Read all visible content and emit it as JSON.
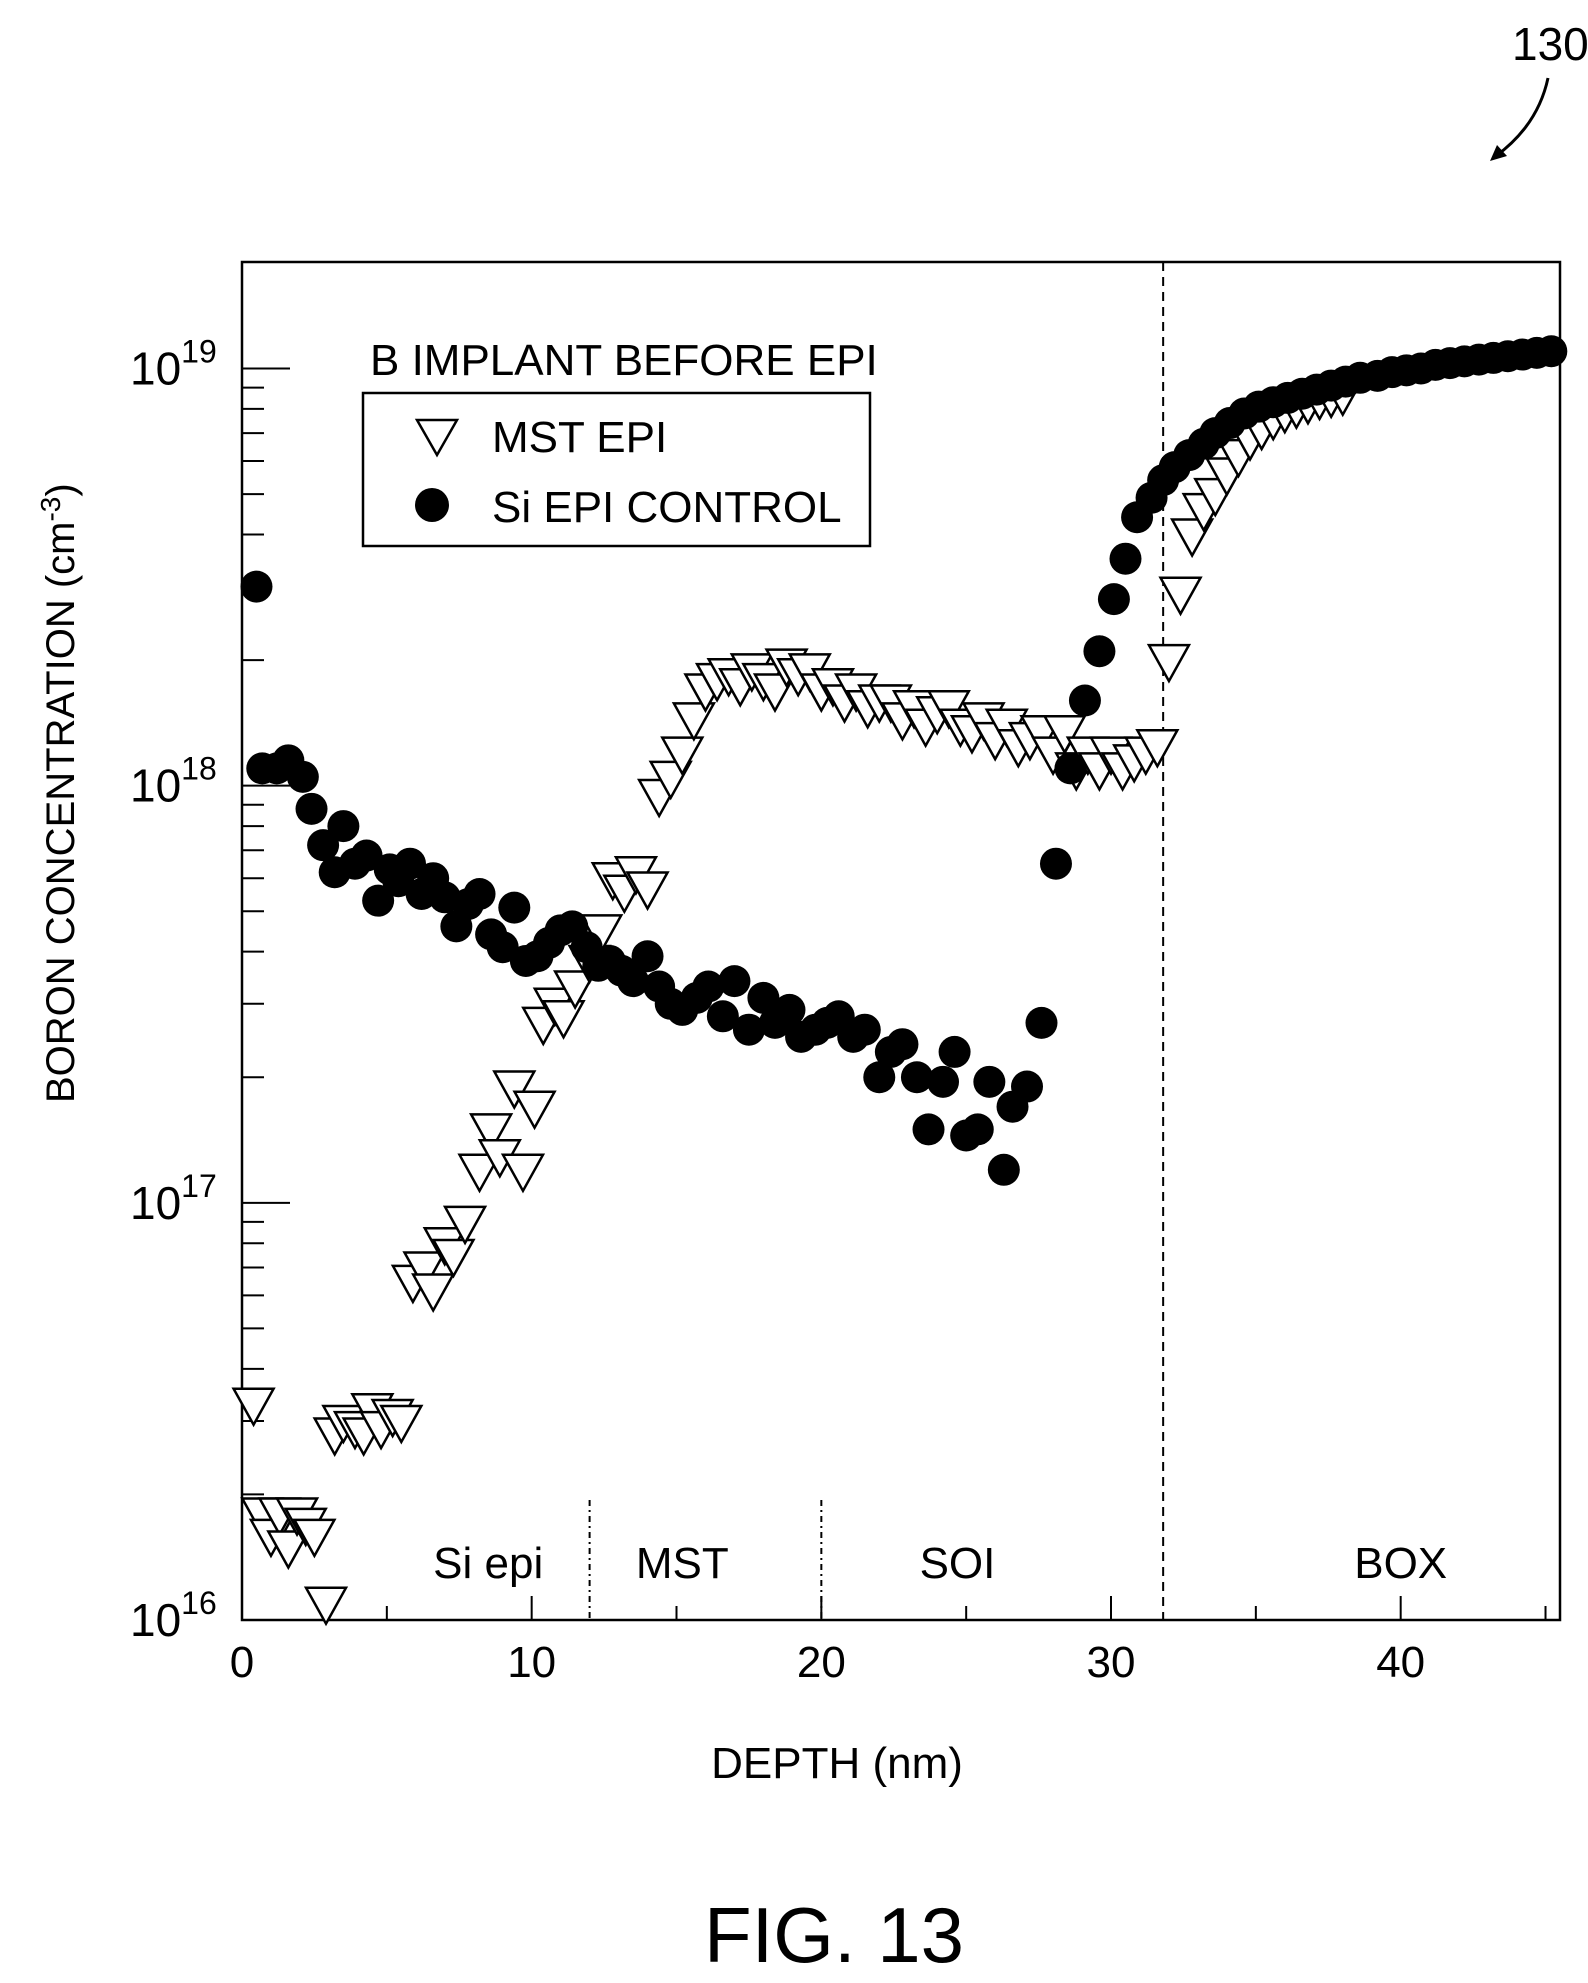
{
  "figure": {
    "ref_numeral": "130",
    "caption": "FIG. 13"
  },
  "chart_data": {
    "type": "scatter",
    "title": "",
    "xlabel": "DEPTH (nm)",
    "ylabel_main": "BORON CONCENTRATION (cm",
    "ylabel_sup": "-3",
    "ylabel_close": ")",
    "y_scale": "log",
    "xlim": [
      0,
      45.5
    ],
    "ylim": [
      1e+16,
      1.8e+19
    ],
    "x_ticks": [
      0,
      10,
      20,
      30,
      40
    ],
    "x_tick_labels": [
      "0",
      "10",
      "20",
      "30",
      "40"
    ],
    "y_ticks": [
      {
        "value": 1e+16,
        "base": "10",
        "exp": "16"
      },
      {
        "value": 1e+17,
        "base": "10",
        "exp": "17"
      },
      {
        "value": 1e+18,
        "base": "10",
        "exp": "18"
      },
      {
        "value": 1e+19,
        "base": "10",
        "exp": "19"
      }
    ],
    "legend_title": "B IMPLANT BEFORE EPI",
    "legend_placement": "top-left",
    "region_boundaries": [
      {
        "x": 12,
        "style": "dash-dot-short"
      },
      {
        "x": 20,
        "style": "dash-dot-short"
      },
      {
        "x": 31.8,
        "style": "dashed-full"
      }
    ],
    "region_labels": [
      {
        "text": "Si epi",
        "x": 8.5
      },
      {
        "text": "MST",
        "x": 15.2
      },
      {
        "text": "SOI",
        "x": 24.7
      },
      {
        "text": "BOX",
        "x": 40
      }
    ],
    "series": [
      {
        "name": "MST EPI",
        "marker": "open-down-triangle",
        "x": [
          0.4,
          0.7,
          1.0,
          1.3,
          1.6,
          1.9,
          2.2,
          2.5,
          2.9,
          3.2,
          3.5,
          3.9,
          4.2,
          4.5,
          4.8,
          5.2,
          5.5,
          5.9,
          6.3,
          6.6,
          7.0,
          7.3,
          7.7,
          8.2,
          8.6,
          8.9,
          9.4,
          9.7,
          10.1,
          10.4,
          10.8,
          11.1,
          11.5,
          12.0,
          12.4,
          12.8,
          13.2,
          13.6,
          14.0,
          14.4,
          14.8,
          15.2,
          15.6,
          16.0,
          16.4,
          16.8,
          17.2,
          17.6,
          18.0,
          18.4,
          18.8,
          19.2,
          19.6,
          20.0,
          20.4,
          20.8,
          21.2,
          21.6,
          22.0,
          22.4,
          22.8,
          23.2,
          23.6,
          24.0,
          24.4,
          24.8,
          25.2,
          25.6,
          26.0,
          26.4,
          26.8,
          27.2,
          27.6,
          28.0,
          28.4,
          28.8,
          29.2,
          29.6,
          30.0,
          30.4,
          30.8,
          31.2,
          31.6,
          32.0,
          32.4,
          32.8,
          33.2,
          33.6,
          34.0,
          34.4,
          34.8,
          35.2,
          35.6,
          36.0,
          36.4,
          36.8,
          37.2,
          37.6,
          38.0
        ],
        "values": [
          3.3e+16,
          1.8e+16,
          1.6e+16,
          1.8e+16,
          1.5e+16,
          1.8e+16,
          1.7e+16,
          1.6e+16,
          1.1e+16,
          2.8e+16,
          3e+16,
          2.9e+16,
          2.8e+16,
          3.2e+16,
          2.9e+16,
          3.1e+16,
          3e+16,
          6.5e+16,
          7e+16,
          6.2e+16,
          8e+16,
          7.5e+16,
          9e+16,
          1.2e+17,
          1.5e+17,
          1.3e+17,
          1.9e+17,
          1.2e+17,
          1.7e+17,
          2.7e+17,
          3e+17,
          2.8e+17,
          3.3e+17,
          3.8e+17,
          4.5e+17,
          6e+17,
          5.6e+17,
          6.2e+17,
          5.7e+17,
          9.5e+17,
          1.05e+18,
          1.2e+18,
          1.45e+18,
          1.7e+18,
          1.8e+18,
          1.85e+18,
          1.75e+18,
          1.9e+18,
          1.8e+18,
          1.7e+18,
          1.95e+18,
          1.85e+18,
          1.9e+18,
          1.7e+18,
          1.75e+18,
          1.6e+18,
          1.7e+18,
          1.55e+18,
          1.6e+18,
          1.6e+18,
          1.45e+18,
          1.55e+18,
          1.4e+18,
          1.5e+18,
          1.55e+18,
          1.4e+18,
          1.35e+18,
          1.45e+18,
          1.3e+18,
          1.4e+18,
          1.25e+18,
          1.3e+18,
          1.35e+18,
          1.2e+18,
          1.35e+18,
          1.1e+18,
          1.2e+18,
          1.1e+18,
          1.2e+18,
          1.1e+18,
          1.15e+18,
          1.2e+18,
          1.25e+18,
          2e+18,
          2.9e+18,
          4e+18,
          4.6e+18,
          5e+18,
          5.6e+18,
          6.2e+18,
          6.8e+18,
          7.2e+18,
          7.6e+18,
          7.9e+18,
          8.1e+18,
          8.3e+18,
          8.5e+18,
          8.6e+18,
          8.7e+18
        ]
      },
      {
        "name": "Si EPI CONTROL",
        "marker": "filled-circle",
        "x": [
          0.5,
          0.7,
          1.2,
          1.6,
          2.1,
          2.4,
          2.8,
          3.2,
          3.5,
          3.9,
          4.3,
          4.7,
          5.1,
          5.4,
          5.8,
          6.2,
          6.6,
          7.0,
          7.4,
          7.8,
          8.2,
          8.6,
          9.0,
          9.4,
          9.8,
          10.2,
          10.6,
          11.0,
          11.4,
          11.9,
          12.3,
          12.7,
          13.1,
          13.5,
          14.0,
          14.4,
          14.8,
          15.2,
          15.7,
          16.1,
          16.6,
          17.0,
          17.5,
          18.0,
          18.4,
          18.9,
          19.3,
          19.8,
          20.2,
          20.6,
          21.1,
          21.5,
          22.0,
          22.4,
          22.8,
          23.3,
          23.7,
          24.2,
          24.6,
          25.0,
          25.4,
          25.8,
          26.3,
          26.6,
          27.1,
          27.6,
          28.1,
          28.6,
          29.1,
          29.6,
          30.1,
          30.5,
          30.9,
          31.4,
          31.8,
          32.2,
          32.7,
          33.2,
          33.6,
          34.1,
          34.6,
          35.1,
          35.6,
          36.1,
          36.6,
          37.1,
          37.6,
          38.1,
          38.6,
          39.2,
          39.7,
          40.2,
          40.7,
          41.2,
          41.7,
          42.2,
          42.7,
          43.2,
          43.7,
          44.2,
          44.7,
          45.2
        ],
        "values": [
          3e+18,
          1.1e+18,
          1.1e+18,
          1.15e+18,
          1.05e+18,
          8.8e+17,
          7.2e+17,
          6.2e+17,
          8e+17,
          6.5e+17,
          6.8e+17,
          5.3e+17,
          6.3e+17,
          5.9e+17,
          6.5e+17,
          5.5e+17,
          6e+17,
          5.4e+17,
          4.6e+17,
          5.2e+17,
          5.5e+17,
          4.4e+17,
          4.1e+17,
          5.1e+17,
          3.8e+17,
          3.9e+17,
          4.2e+17,
          4.5e+17,
          4.6e+17,
          4.1e+17,
          3.7e+17,
          3.8e+17,
          3.6e+17,
          3.4e+17,
          3.9e+17,
          3.3e+17,
          3e+17,
          2.9e+17,
          3.1e+17,
          3.3e+17,
          2.8e+17,
          3.4e+17,
          2.6e+17,
          3.1e+17,
          2.7e+17,
          2.9e+17,
          2.5e+17,
          2.6e+17,
          2.7e+17,
          2.8e+17,
          2.5e+17,
          2.6e+17,
          2e+17,
          2.3e+17,
          2.4e+17,
          2e+17,
          1.5e+17,
          1.95e+17,
          2.3e+17,
          1.45e+17,
          1.5e+17,
          1.95e+17,
          1.2e+17,
          1.7e+17,
          1.9e+17,
          2.7e+17,
          6.5e+17,
          1.1e+18,
          1.6e+18,
          2.1e+18,
          2.8e+18,
          3.5e+18,
          4.4e+18,
          4.9e+18,
          5.4e+18,
          5.8e+18,
          6.2e+18,
          6.6e+18,
          7e+18,
          7.4e+18,
          7.8e+18,
          8.1e+18,
          8.3e+18,
          8.5e+18,
          8.7e+18,
          8.9e+18,
          9.1e+18,
          9.3e+18,
          9.5e+18,
          9.6e+18,
          9.8e+18,
          9.9e+18,
          1e+19,
          1.02e+19,
          1.03e+19,
          1.04e+19,
          1.05e+19,
          1.06e+19,
          1.07e+19,
          1.08e+19,
          1.09e+19,
          1.1e+19
        ]
      }
    ]
  }
}
